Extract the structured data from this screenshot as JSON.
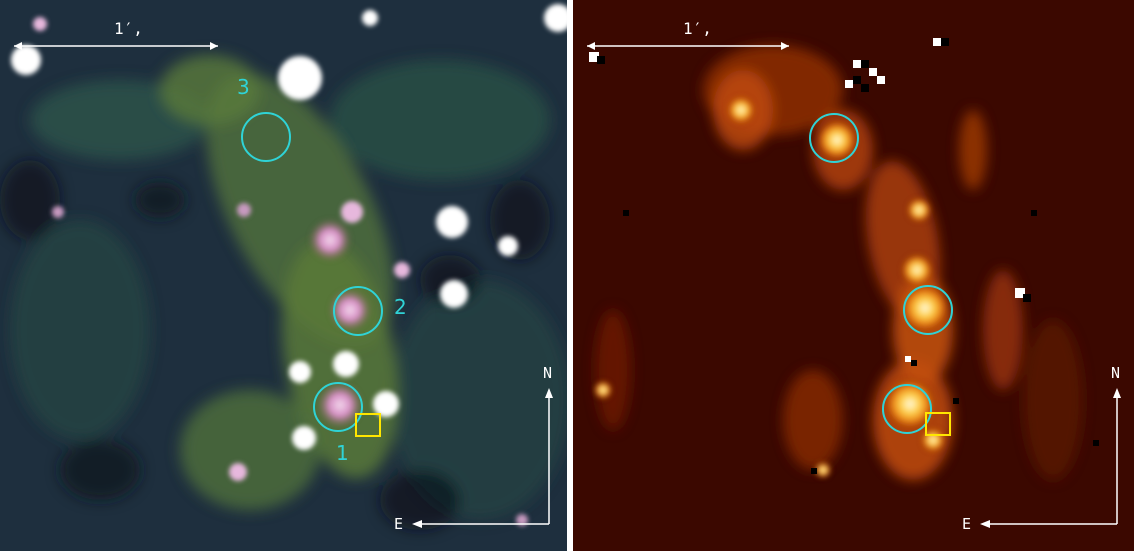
{
  "colors": {
    "left_background": "#1e2f3e",
    "right_background": "#3b0800",
    "region_circle": "#2fd3d6",
    "region_label": "#2fd3d6",
    "box_marker": "#ffe600",
    "annotation": "#ffffff"
  },
  "left_panel": {
    "scale_bar_label": "1′,",
    "region_labels": [
      "1",
      "2",
      "3"
    ],
    "compass_north": "N",
    "compass_east": "E"
  },
  "right_panel": {
    "scale_bar_label": "1′,",
    "compass_north": "N",
    "compass_east": "E"
  }
}
